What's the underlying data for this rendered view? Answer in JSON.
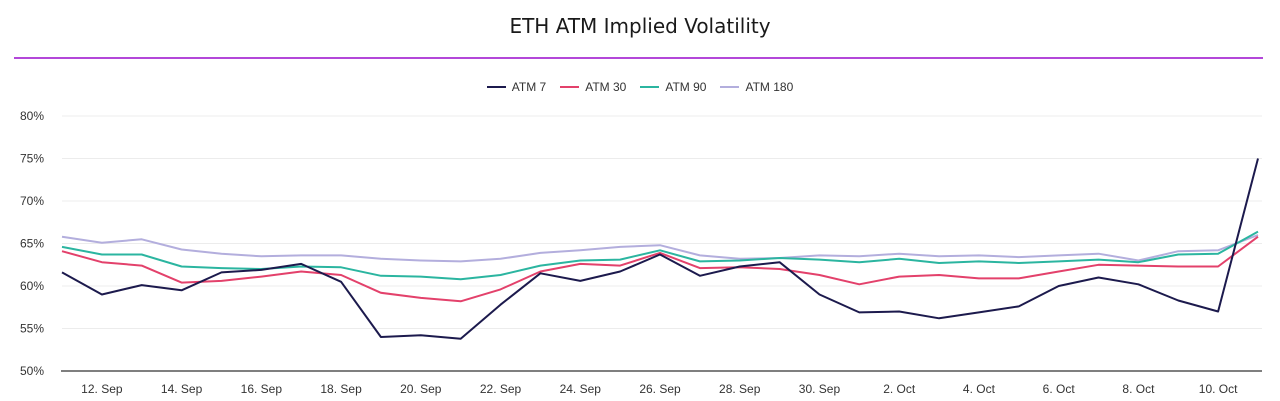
{
  "chart_data": {
    "type": "line",
    "title": "ETH ATM Implied Volatility",
    "xlabel": "",
    "ylabel": "",
    "ylim": [
      50,
      80
    ],
    "yticks": [
      "50%",
      "55%",
      "60%",
      "65%",
      "70%",
      "75%",
      "80%"
    ],
    "ytick_values": [
      50,
      55,
      60,
      65,
      70,
      75,
      80
    ],
    "grid": true,
    "legend_position": "top-center",
    "x": [
      "11. Sep",
      "12. Sep",
      "13. Sep",
      "14. Sep",
      "15. Sep",
      "16. Sep",
      "17. Sep",
      "18. Sep",
      "19. Sep",
      "20. Sep",
      "21. Sep",
      "22. Sep",
      "23. Sep",
      "24. Sep",
      "25. Sep",
      "26. Sep",
      "27. Sep",
      "28. Sep",
      "29. Sep",
      "30. Sep",
      "1. Oct",
      "2. Oct",
      "3. Oct",
      "4. Oct",
      "5. Oct",
      "6. Oct",
      "7. Oct",
      "8. Oct",
      "9. Oct",
      "10. Oct",
      "11. Oct"
    ],
    "xticks": [
      "12. Sep",
      "14. Sep",
      "16. Sep",
      "18. Sep",
      "20. Sep",
      "22. Sep",
      "24. Sep",
      "26. Sep",
      "28. Sep",
      "30. Sep",
      "2. Oct",
      "4. Oct",
      "6. Oct",
      "8. Oct",
      "10. Oct"
    ],
    "series": [
      {
        "name": "ATM 7",
        "color": "#1c1a4d",
        "values": [
          61.6,
          59.0,
          60.1,
          59.5,
          61.6,
          61.9,
          62.6,
          60.5,
          54.0,
          54.2,
          53.8,
          57.8,
          61.5,
          60.6,
          61.7,
          63.7,
          61.2,
          62.3,
          62.8,
          59.0,
          56.9,
          57.0,
          56.2,
          56.9,
          57.6,
          60.0,
          61.0,
          60.2,
          58.3,
          57.0,
          75.0
        ]
      },
      {
        "name": "ATM 30",
        "color": "#e3416b",
        "values": [
          64.1,
          62.8,
          62.4,
          60.4,
          60.6,
          61.1,
          61.7,
          61.3,
          59.2,
          58.6,
          58.2,
          59.6,
          61.7,
          62.6,
          62.4,
          63.9,
          62.1,
          62.2,
          62.0,
          61.3,
          60.2,
          61.1,
          61.3,
          60.9,
          60.9,
          61.7,
          62.5,
          62.4,
          62.3,
          62.3,
          65.8
        ]
      },
      {
        "name": "ATM 90",
        "color": "#2bb5a0",
        "values": [
          64.6,
          63.7,
          63.7,
          62.3,
          62.1,
          62.0,
          62.3,
          62.2,
          61.2,
          61.1,
          60.8,
          61.3,
          62.4,
          63.0,
          63.1,
          64.2,
          62.9,
          63.0,
          63.3,
          63.1,
          62.8,
          63.2,
          62.7,
          62.9,
          62.7,
          62.9,
          63.1,
          62.8,
          63.7,
          63.8,
          66.4
        ]
      },
      {
        "name": "ATM 180",
        "color": "#b3aedd",
        "values": [
          65.8,
          65.1,
          65.5,
          64.3,
          63.8,
          63.5,
          63.6,
          63.6,
          63.2,
          63.0,
          62.9,
          63.2,
          63.9,
          64.2,
          64.6,
          64.8,
          63.6,
          63.2,
          63.3,
          63.6,
          63.5,
          63.8,
          63.5,
          63.6,
          63.4,
          63.6,
          63.8,
          63.0,
          64.1,
          64.2,
          66.0
        ]
      }
    ]
  },
  "colors": {
    "title_rule": "#b347d9",
    "gridline": "#ececec",
    "axis": "#555555"
  }
}
